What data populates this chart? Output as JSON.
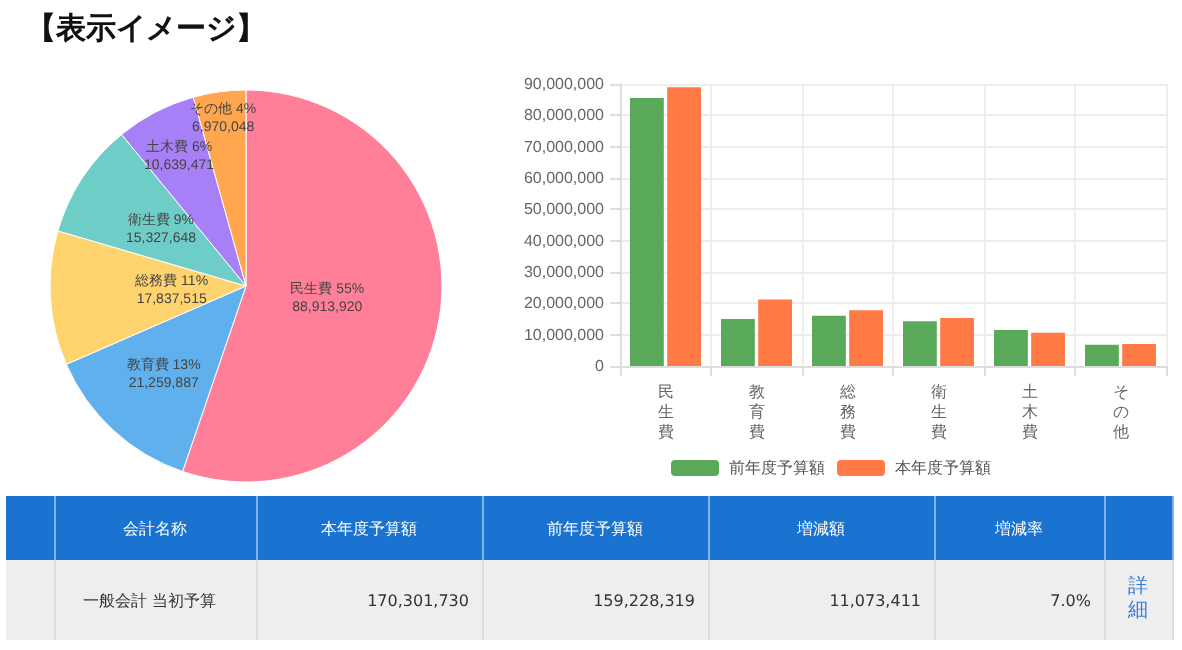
{
  "chart_data": [
    {
      "type": "pie",
      "title": "【表示イメージ】",
      "categories": [
        "民生費",
        "教育費",
        "総務費",
        "衛生費",
        "土木費",
        "その他"
      ],
      "values": [
        88913920,
        21259887,
        17837515,
        15327648,
        10639471,
        6970048
      ],
      "value_labels": [
        "55%\n88,913,920",
        "13%\n21,259,887",
        "11%\n17,837,515",
        "9%\n15,327,648",
        "6%\n10,639,471",
        "4%\n6,970,048"
      ],
      "colors": [
        "#ff7f99",
        "#5fb0ec",
        "#ffd36e",
        "#6fcdc7",
        "#a77ff7",
        "#ffa64f"
      ],
      "legend": false
    },
    {
      "type": "bar",
      "categories": [
        "民生費",
        "教育費",
        "総務費",
        "衛生費",
        "土木費",
        "その他"
      ],
      "series": [
        {
          "name": "前年度予算額",
          "color": "#5aa85a",
          "values": [
            85500000,
            15000000,
            16000000,
            14300000,
            11500000,
            6800000
          ]
        },
        {
          "name": "本年度予算額",
          "color": "#ff7a45",
          "values": [
            89000000,
            21200000,
            17800000,
            15300000,
            10600000,
            7000000
          ]
        }
      ],
      "ylim": [
        0,
        90000000
      ],
      "yticks": [
        0,
        {
          "value": 10000000,
          "label": "10,000,000"
        },
        {
          "value": 20000000,
          "label": "20,000,000"
        },
        {
          "value": 30000000,
          "label": "30,000,000"
        },
        {
          "value": 40000000,
          "label": "40,000,000"
        },
        {
          "value": 50000000,
          "label": "50,000,000"
        },
        {
          "value": 60000000,
          "label": "60,000,000"
        },
        {
          "value": 70000000,
          "label": "70,000,000"
        },
        {
          "value": 80000000,
          "label": "80,000,000"
        },
        {
          "value": 90000000,
          "label": "90,000,000"
        }
      ],
      "grid": true,
      "legend": "bottom"
    },
    {
      "type": "other",
      "categories": [
        null,
        "会計名称",
        "本年度予算額",
        "前年度予算額",
        "増減額",
        "増減率",
        null
      ],
      "annotations": [
        "一般会計 当初予算",
        "170,301,730",
        "159,228,319",
        "11,073,411",
        "7.0%",
        "詳細"
      ]
    }
  ]
}
